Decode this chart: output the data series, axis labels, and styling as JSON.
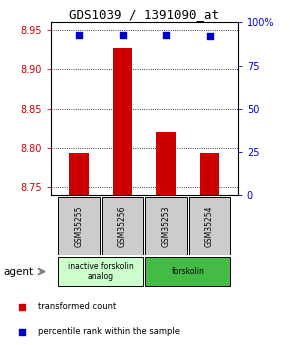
{
  "title": "GDS1039 / 1391090_at",
  "samples": [
    "GSM35255",
    "GSM35256",
    "GSM35253",
    "GSM35254"
  ],
  "bar_values": [
    8.793,
    8.928,
    8.82,
    8.793
  ],
  "percentile_values": [
    93,
    93,
    93,
    92
  ],
  "ylim_left": [
    8.74,
    8.96
  ],
  "ylim_right": [
    0,
    100
  ],
  "yticks_left": [
    8.75,
    8.8,
    8.85,
    8.9,
    8.95
  ],
  "yticks_right": [
    0,
    25,
    50,
    75,
    100
  ],
  "bar_color": "#cc0000",
  "percentile_color": "#0000cc",
  "bar_base": 8.74,
  "groups": [
    {
      "label": "inactive forskolin\nanalog",
      "indices": [
        0,
        1
      ],
      "color": "#ccffcc"
    },
    {
      "label": "forskolin",
      "indices": [
        2,
        3
      ],
      "color": "#44bb44"
    }
  ],
  "sample_box_color": "#cccccc",
  "legend_red_label": "transformed count",
  "legend_blue_label": "percentile rank within the sample",
  "agent_label": "agent",
  "background_color": "#ffffff",
  "left_tick_color": "#cc0000",
  "right_tick_color": "#0000cc",
  "title_fontsize": 9,
  "tick_labelsize": 7,
  "bar_width": 0.45
}
